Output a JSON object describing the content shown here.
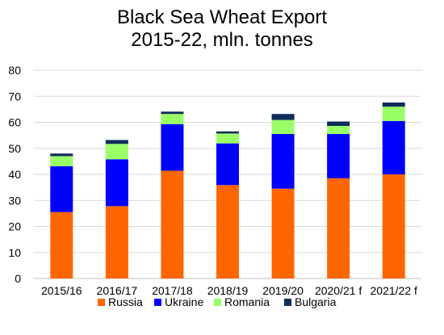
{
  "chart_data": {
    "type": "bar",
    "stacked": true,
    "title_lines": [
      "Black Sea Wheat Export",
      "2015-22, mln. tonnes"
    ],
    "categories": [
      "2015/16",
      "2016/17",
      "2017/18",
      "2018/19",
      "2019/20",
      "2020/21 f",
      "2021/22 f"
    ],
    "series": [
      {
        "name": "Russia",
        "color": "#FF6600",
        "values": [
          25.5,
          27.8,
          41.4,
          35.9,
          34.5,
          38.5,
          40.0
        ]
      },
      {
        "name": "Ukraine",
        "color": "#0000FF",
        "values": [
          17.6,
          18.0,
          17.9,
          16.0,
          21.0,
          17.0,
          20.5
        ]
      },
      {
        "name": "Romania",
        "color": "#99FF66",
        "values": [
          3.9,
          5.9,
          3.9,
          3.8,
          5.4,
          3.1,
          5.5
        ]
      },
      {
        "name": "Bulgaria",
        "color": "#0F2D5A",
        "values": [
          1.0,
          1.5,
          0.9,
          0.8,
          2.3,
          1.7,
          1.6
        ]
      }
    ],
    "ylim": [
      0,
      80
    ],
    "yticks": [
      0,
      10,
      20,
      30,
      40,
      50,
      60,
      70,
      80
    ],
    "grid": true,
    "legend_position": "bottom"
  }
}
